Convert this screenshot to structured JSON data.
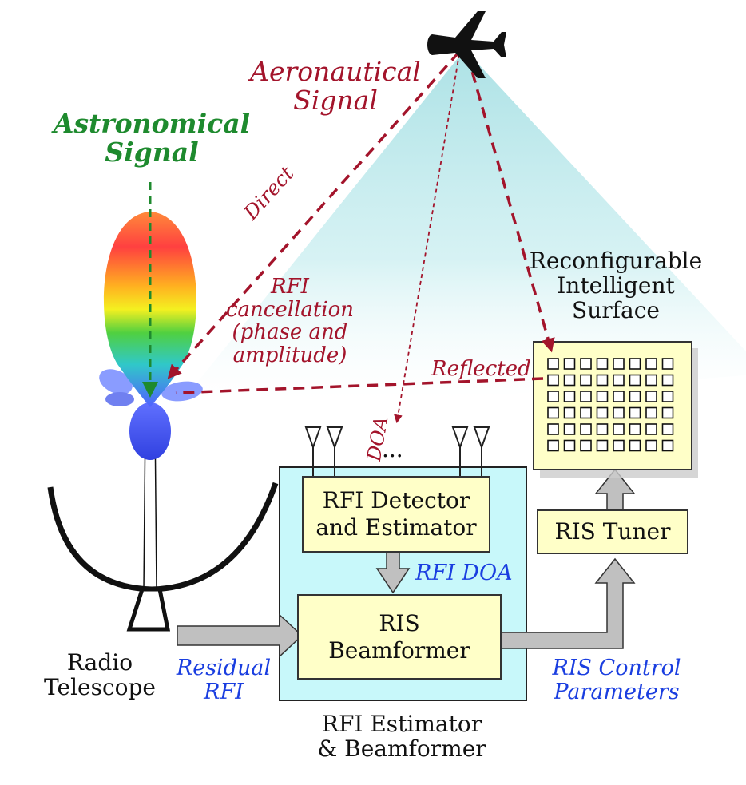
{
  "labels": {
    "astronomical_signal": "Astronomical\nSignal",
    "aeronautical_signal": "Aeronautical\nSignal",
    "direct": "Direct",
    "rfi_cancellation": "RFI\ncancellation\n(phase and\namplitude)",
    "reflected": "Reflected",
    "doa": "DOA",
    "ellipsis": "...",
    "ris_title": "Reconfigurable\nIntelligent\nSurface",
    "rfi_doa": "RFI DOA",
    "residual_rfi": "Residual\nRFI",
    "radio_telescope": "Radio\nTelescope",
    "ris_control": "RIS Control\nParameters",
    "estimator_caption": "RFI Estimator\n& Beamformer"
  },
  "boxes": {
    "detector": "RFI Detector\nand Estimator",
    "beamformer": "RIS\nBeamformer",
    "tuner": "RIS Tuner"
  },
  "ris_grid": {
    "rows": 6,
    "cols": 8
  },
  "colors": {
    "astronomical": "#1e8a2e",
    "aeronautical": "#a3142b",
    "blue_text": "#1a3ee0",
    "box_fill": "#ffffc8",
    "panel_fill": "#c8f8fa",
    "beam_cone": "#a8e0e4",
    "arrow_gray": "#c0c0c0"
  },
  "icons": [
    "airplane-icon",
    "antenna-icon",
    "dish-icon",
    "beam-pattern-icon"
  ]
}
